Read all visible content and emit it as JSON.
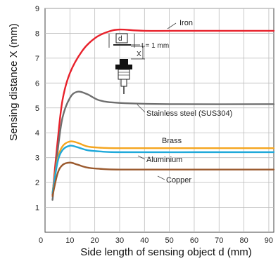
{
  "chart_data": {
    "type": "line",
    "xlabel": "Side length of sensing object d (mm)",
    "ylabel": "Sensing distance X (mm)",
    "xlim": [
      0,
      92
    ],
    "ylim": [
      0,
      9
    ],
    "xticks": [
      0,
      10,
      20,
      30,
      40,
      50,
      60,
      70,
      80,
      90
    ],
    "yticks": [
      1,
      2,
      3,
      4,
      5,
      6,
      7,
      8,
      9
    ],
    "grid": true,
    "annotation": {
      "d_label": "d",
      "t_label": "t = 1 mm",
      "x_label": "X"
    },
    "series": [
      {
        "name": "Iron",
        "color": "#e8212b",
        "points": [
          [
            3,
            1.5
          ],
          [
            5,
            3.6
          ],
          [
            7,
            5.3
          ],
          [
            10,
            6.4
          ],
          [
            15,
            7.3
          ],
          [
            20,
            7.8
          ],
          [
            25,
            8.05
          ],
          [
            30,
            8.15
          ],
          [
            40,
            8.1
          ],
          [
            60,
            8.1
          ],
          [
            92,
            8.1
          ]
        ]
      },
      {
        "name": "Stainless steel (SUS304)",
        "color": "#6e6e6e",
        "points": [
          [
            3,
            1.3
          ],
          [
            5,
            3.2
          ],
          [
            7,
            4.6
          ],
          [
            10,
            5.4
          ],
          [
            13,
            5.65
          ],
          [
            17,
            5.55
          ],
          [
            22,
            5.3
          ],
          [
            30,
            5.2
          ],
          [
            50,
            5.15
          ],
          [
            92,
            5.15
          ]
        ]
      },
      {
        "name": "Brass",
        "color": "#f5a51e",
        "points": [
          [
            3,
            1.6
          ],
          [
            5,
            2.9
          ],
          [
            7,
            3.45
          ],
          [
            10,
            3.65
          ],
          [
            13,
            3.6
          ],
          [
            17,
            3.45
          ],
          [
            22,
            3.4
          ],
          [
            30,
            3.38
          ],
          [
            60,
            3.38
          ],
          [
            92,
            3.38
          ]
        ]
      },
      {
        "name": "Aluminium",
        "color": "#1fa9da",
        "points": [
          [
            3,
            1.55
          ],
          [
            5,
            2.8
          ],
          [
            7,
            3.3
          ],
          [
            10,
            3.48
          ],
          [
            13,
            3.42
          ],
          [
            17,
            3.3
          ],
          [
            22,
            3.25
          ],
          [
            30,
            3.22
          ],
          [
            60,
            3.22
          ],
          [
            92,
            3.22
          ]
        ]
      },
      {
        "name": "Copper",
        "color": "#9b5a2e",
        "points": [
          [
            3,
            1.45
          ],
          [
            5,
            2.35
          ],
          [
            7,
            2.7
          ],
          [
            10,
            2.8
          ],
          [
            13,
            2.72
          ],
          [
            17,
            2.6
          ],
          [
            22,
            2.55
          ],
          [
            30,
            2.52
          ],
          [
            60,
            2.52
          ],
          [
            92,
            2.52
          ]
        ]
      }
    ],
    "labels": {
      "Iron": "Iron",
      "Stainless steel (SUS304)": "Stainless steel (SUS304)",
      "Brass": "Brass",
      "Aluminium": "Aluminium",
      "Copper": "Copper"
    }
  }
}
